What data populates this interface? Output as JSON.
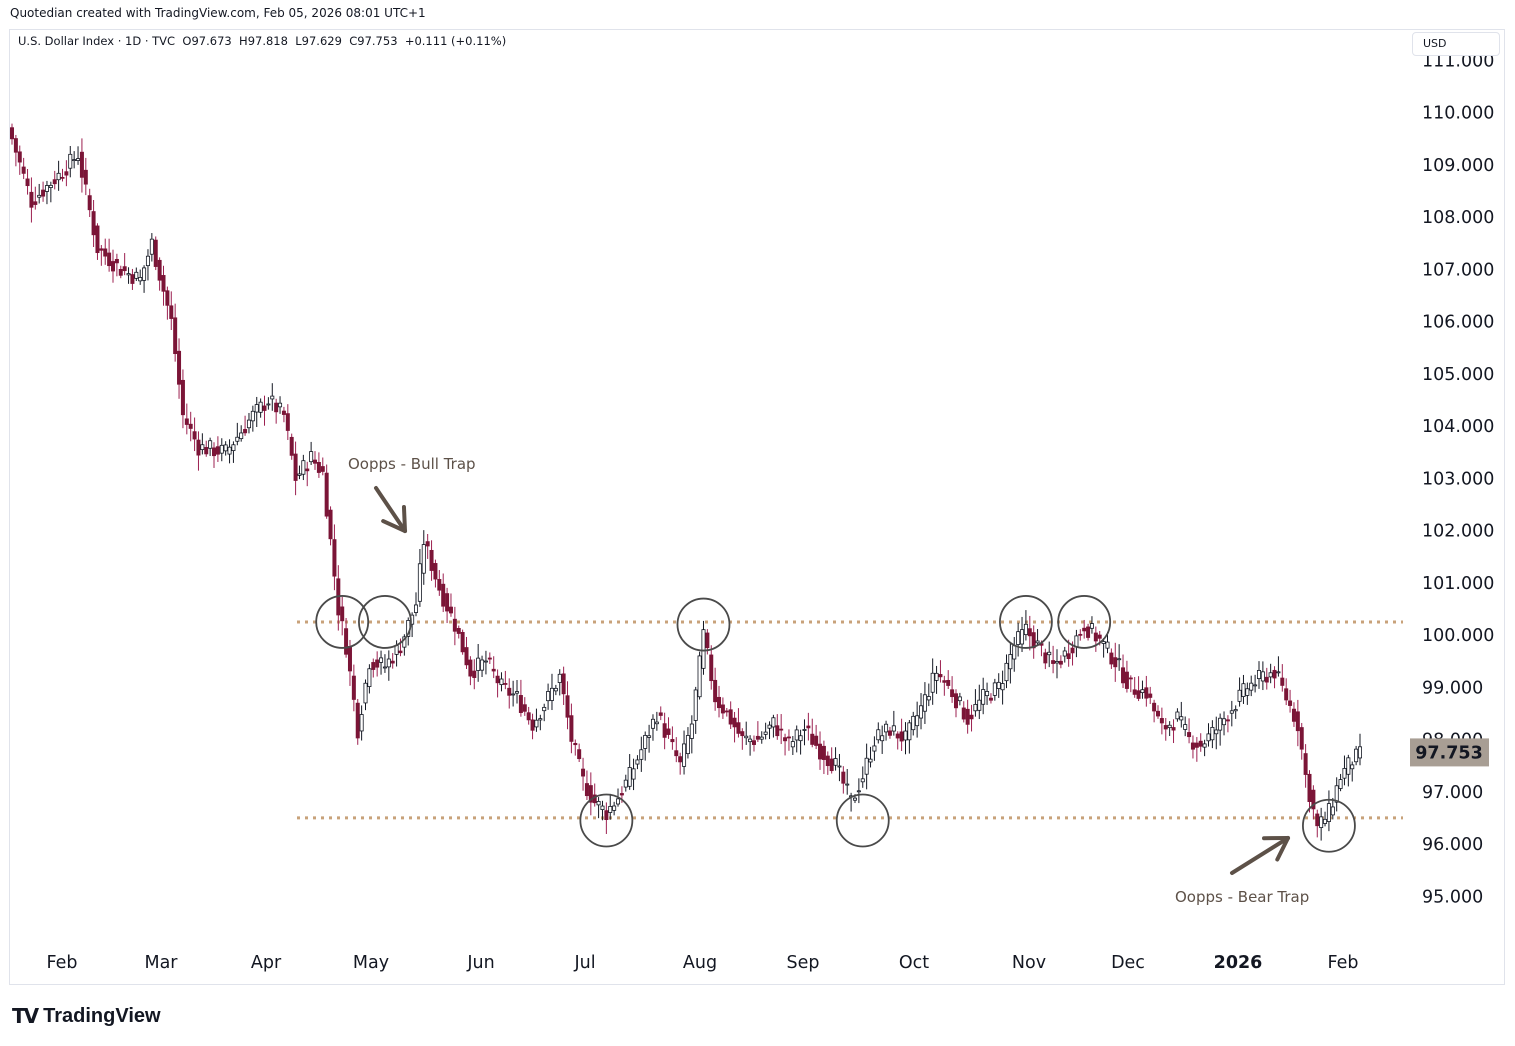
{
  "header": {
    "attribution": "Quotedian created with TradingView.com, Feb 05, 2026 08:01 UTC+1",
    "currency": "USD"
  },
  "legend": {
    "symbol": "U.S. Dollar Index · 1D · TVC",
    "open_label": "O",
    "open": "97.673",
    "high_label": "H",
    "high": "97.818",
    "low_label": "L",
    "low": "97.629",
    "close_label": "C",
    "close": "97.753",
    "change": "+0.111 (+0.11%)"
  },
  "brand": {
    "logo": "TV",
    "name": "TradingView"
  },
  "chart_data": {
    "type": "candlestick",
    "title": "U.S. Dollar Index · 1D · TVC",
    "ylim": [
      94.0,
      111.5
    ],
    "y_ticks": [
      "111.000",
      "110.000",
      "109.000",
      "108.000",
      "107.000",
      "106.000",
      "105.000",
      "104.000",
      "103.000",
      "102.000",
      "101.000",
      "100.000",
      "99.000",
      "98.000",
      "97.000",
      "96.000",
      "95.000"
    ],
    "x_months": [
      "Feb",
      "Mar",
      "Apr",
      "May",
      "Jun",
      "Jul",
      "Aug",
      "Sep",
      "Oct",
      "Nov",
      "Dec",
      "2026",
      "Feb"
    ],
    "last_price": "97.753",
    "colors": {
      "up": "#ffffff",
      "down": "#7b1537",
      "wick": "#9c2050",
      "level": "#c8a27a",
      "annot": "#5d5148",
      "price_tag": "#a89e94"
    },
    "resistance_level": 100.25,
    "support_level": 96.5,
    "anchors": [
      [
        0,
        109.5
      ],
      [
        5,
        108.3
      ],
      [
        12,
        108.8
      ],
      [
        17,
        109.2
      ],
      [
        22,
        107.4
      ],
      [
        28,
        107.0
      ],
      [
        33,
        106.8
      ],
      [
        36,
        107.5
      ],
      [
        41,
        106.0
      ],
      [
        44,
        104.2
      ],
      [
        48,
        103.6
      ],
      [
        55,
        103.5
      ],
      [
        62,
        104.2
      ],
      [
        66,
        104.5
      ],
      [
        70,
        104.2
      ],
      [
        73,
        103.0
      ],
      [
        77,
        103.4
      ],
      [
        80,
        103.1
      ],
      [
        84,
        100.5
      ],
      [
        86,
        99.8
      ],
      [
        89,
        98.2
      ],
      [
        92,
        99.5
      ],
      [
        96,
        99.4
      ],
      [
        100,
        99.8
      ],
      [
        104,
        100.6
      ],
      [
        106,
        101.8
      ],
      [
        110,
        100.9
      ],
      [
        114,
        100.2
      ],
      [
        118,
        99.3
      ],
      [
        122,
        99.5
      ],
      [
        126,
        99.0
      ],
      [
        130,
        98.8
      ],
      [
        134,
        98.3
      ],
      [
        138,
        98.8
      ],
      [
        141,
        99.2
      ],
      [
        144,
        98.0
      ],
      [
        147,
        97.2
      ],
      [
        150,
        96.8
      ],
      [
        153,
        96.6
      ],
      [
        156,
        96.9
      ],
      [
        159,
        97.3
      ],
      [
        162,
        97.8
      ],
      [
        166,
        98.5
      ],
      [
        169,
        98.0
      ],
      [
        172,
        97.5
      ],
      [
        175,
        98.3
      ],
      [
        178,
        100.0
      ],
      [
        181,
        98.8
      ],
      [
        184,
        98.5
      ],
      [
        188,
        98.0
      ],
      [
        192,
        98.0
      ],
      [
        196,
        98.3
      ],
      [
        200,
        97.9
      ],
      [
        204,
        98.2
      ],
      [
        208,
        97.8
      ],
      [
        212,
        97.5
      ],
      [
        216,
        96.8
      ],
      [
        219,
        97.3
      ],
      [
        222,
        98.0
      ],
      [
        226,
        98.2
      ],
      [
        230,
        98.0
      ],
      [
        234,
        98.6
      ],
      [
        238,
        99.3
      ],
      [
        242,
        98.9
      ],
      [
        246,
        98.4
      ],
      [
        250,
        98.8
      ],
      [
        254,
        99.0
      ],
      [
        258,
        99.8
      ],
      [
        261,
        100.1
      ],
      [
        264,
        99.8
      ],
      [
        268,
        99.4
      ],
      [
        272,
        99.7
      ],
      [
        276,
        100.2
      ],
      [
        280,
        99.9
      ],
      [
        284,
        99.5
      ],
      [
        288,
        99.0
      ],
      [
        292,
        98.9
      ],
      [
        296,
        98.2
      ],
      [
        300,
        98.4
      ],
      [
        303,
        98.0
      ],
      [
        306,
        97.9
      ],
      [
        310,
        98.2
      ],
      [
        314,
        98.6
      ],
      [
        318,
        99.0
      ],
      [
        322,
        99.2
      ],
      [
        325,
        99.3
      ],
      [
        328,
        98.8
      ],
      [
        331,
        98.3
      ],
      [
        333,
        97.3
      ],
      [
        336,
        96.3
      ],
      [
        339,
        96.6
      ],
      [
        342,
        97.3
      ],
      [
        345,
        97.6
      ],
      [
        347,
        97.7
      ]
    ],
    "annotations": [
      {
        "text": "Oopps - Bull Trap"
      },
      {
        "text": "Oopps - Bear Trap"
      }
    ]
  }
}
